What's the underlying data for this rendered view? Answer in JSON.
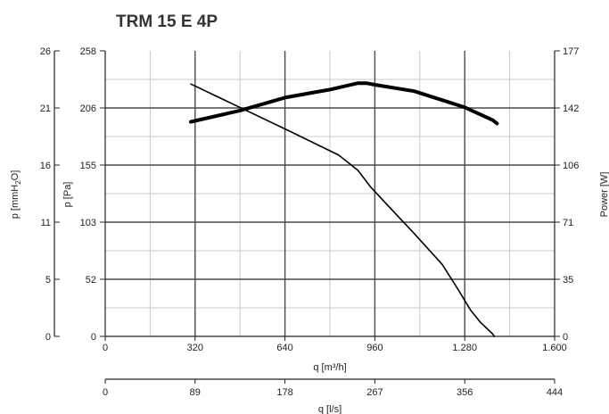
{
  "chart_data": {
    "type": "line",
    "title": "TRM 15 E 4P",
    "x_axes": {
      "primary": {
        "label": "q [m³/h]",
        "range": [
          0,
          1600
        ],
        "ticks": [
          "0",
          "320",
          "640",
          "960",
          "1.280",
          "1.600"
        ]
      },
      "secondary": {
        "label": "q [l/s]",
        "range": [
          0,
          444
        ],
        "ticks": [
          "0",
          "89",
          "178",
          "267",
          "356",
          "444"
        ]
      }
    },
    "y_axes": {
      "pressure_pa": {
        "label": "p [Pa]",
        "range": [
          0,
          258
        ],
        "ticks": [
          "0",
          "52",
          "103",
          "155",
          "206",
          "258"
        ]
      },
      "pressure_mmh2o": {
        "label_main": "p [mmH",
        "label_sub": "2",
        "label_end": "O]",
        "range": [
          0,
          26
        ],
        "ticks": [
          "0",
          "5",
          "11",
          "16",
          "21",
          "26"
        ]
      },
      "power_w": {
        "label": "Power [W]",
        "range": [
          0,
          177
        ],
        "ticks": [
          "0",
          "35",
          "71",
          "106",
          "142",
          "177"
        ]
      }
    },
    "grid": true,
    "series": [
      {
        "id": "pressure",
        "axis": "pa",
        "stroke": "#000000",
        "width": 1.6,
        "x": [
          305,
          495,
          660,
          830,
          900,
          945,
          1000,
          1100,
          1200,
          1255,
          1300,
          1335,
          1380,
          1385
        ],
        "y": [
          228,
          205,
          185,
          164,
          150,
          135,
          120,
          93,
          65,
          43,
          24,
          13,
          2,
          0
        ]
      },
      {
        "id": "power",
        "axis": "w",
        "stroke": "#000000",
        "width": 4,
        "x": [
          305,
          480,
          640,
          800,
          900,
          930,
          960,
          1100,
          1280,
          1380,
          1395
        ],
        "y": [
          133,
          140,
          148,
          153,
          157,
          157,
          156,
          152,
          142,
          134,
          132
        ]
      }
    ]
  }
}
